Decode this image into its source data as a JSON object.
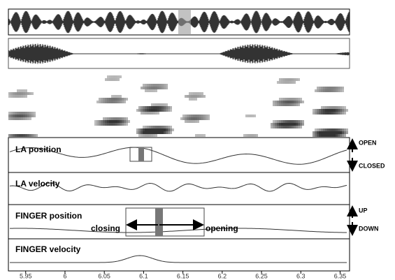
{
  "panels": [
    {
      "label": "LA position"
    },
    {
      "label": "LA velocity"
    },
    {
      "label": "FINGER position"
    },
    {
      "label": "FINGER velocity"
    }
  ],
  "annotations": {
    "open": "OPEN",
    "closed": "CLOSED",
    "up": "UP",
    "down": "DOWN",
    "closing": "closing",
    "opening": "opening"
  },
  "x_axis": {
    "xlim": [
      5.928,
      6.362
    ],
    "xticks": [
      5.95,
      6,
      6.05,
      6.1,
      6.15,
      6.2,
      6.25,
      6.3,
      6.35
    ]
  }
}
